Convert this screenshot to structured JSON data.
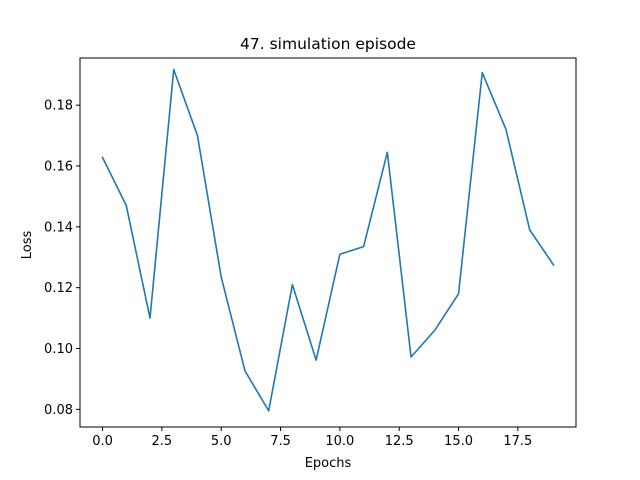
{
  "chart_data": {
    "type": "line",
    "title": "47. simulation episode",
    "xlabel": "Epochs",
    "ylabel": "Loss",
    "xlim": [
      -0.95,
      19.95
    ],
    "ylim": [
      0.0742,
      0.1955
    ],
    "xticks": [
      0.0,
      2.5,
      5.0,
      7.5,
      10.0,
      12.5,
      15.0,
      17.5
    ],
    "xtick_labels": [
      "0.0",
      "2.5",
      "5.0",
      "7.5",
      "10.0",
      "12.5",
      "15.0",
      "17.5"
    ],
    "yticks": [
      0.08,
      0.1,
      0.12,
      0.14,
      0.16,
      0.18
    ],
    "ytick_labels": [
      "0.08",
      "0.10",
      "0.12",
      "0.14",
      "0.16",
      "0.18"
    ],
    "grid": false,
    "series": [
      {
        "color": "#1f77b4",
        "x": [
          0,
          1,
          2,
          3,
          4,
          5,
          6,
          7,
          8,
          9,
          10,
          11,
          12,
          13,
          14,
          15,
          16,
          17,
          18,
          19
        ],
        "values": [
          0.1628,
          0.147,
          0.11,
          0.1917,
          0.17,
          0.1235,
          0.0927,
          0.0795,
          0.121,
          0.0962,
          0.131,
          0.1335,
          0.1645,
          0.0972,
          0.106,
          0.118,
          0.1907,
          0.172,
          0.139,
          0.1275
        ]
      }
    ]
  }
}
